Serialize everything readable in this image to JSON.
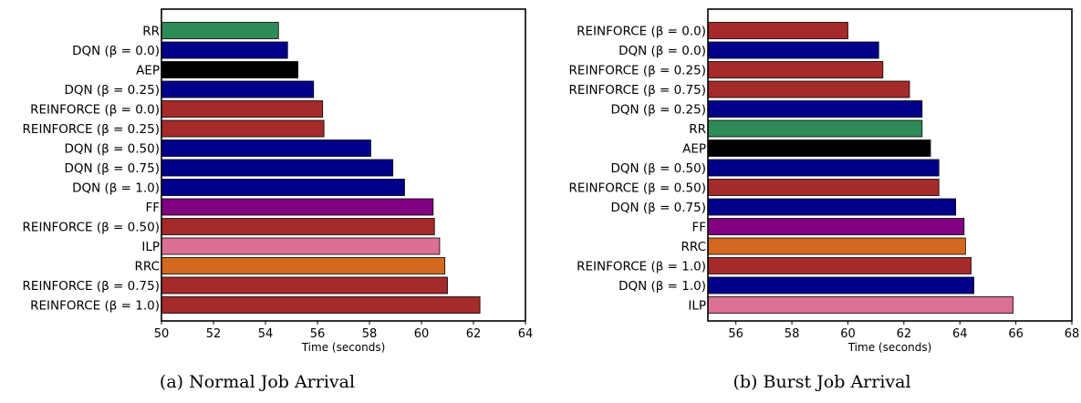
{
  "chart_data": [
    {
      "type": "bar",
      "orientation": "horizontal",
      "caption": "(a) Normal Job Arrival",
      "xlabel": "Time (seconds)",
      "xlim": [
        50,
        64
      ],
      "xticks": [
        50,
        52,
        54,
        56,
        58,
        60,
        62,
        64
      ],
      "categories": [
        {
          "label": "RR",
          "value": 54.5,
          "color": "#2e8b57"
        },
        {
          "label": "DQN (β = 0.0)",
          "value": 54.85,
          "color": "#00008b"
        },
        {
          "label": "AEP",
          "value": 55.25,
          "color": "#000000"
        },
        {
          "label": "DQN (β = 0.25)",
          "value": 55.85,
          "color": "#00008b"
        },
        {
          "label": "REINFORCE (β = 0.0)",
          "value": 56.2,
          "color": "#a52a2a"
        },
        {
          "label": "REINFORCE (β = 0.25)",
          "value": 56.25,
          "color": "#a52a2a"
        },
        {
          "label": "DQN (β = 0.50)",
          "value": 58.05,
          "color": "#00008b"
        },
        {
          "label": "DQN (β = 0.75)",
          "value": 58.9,
          "color": "#00008b"
        },
        {
          "label": "DQN (β = 1.0)",
          "value": 59.35,
          "color": "#00008b"
        },
        {
          "label": "FF",
          "value": 60.45,
          "color": "#800080"
        },
        {
          "label": "REINFORCE (β = 0.50)",
          "value": 60.5,
          "color": "#a52a2a"
        },
        {
          "label": "ILP",
          "value": 60.7,
          "color": "#db7093"
        },
        {
          "label": "RRC",
          "value": 60.9,
          "color": "#d2691e"
        },
        {
          "label": "REINFORCE (β = 0.75)",
          "value": 61.0,
          "color": "#a52a2a"
        },
        {
          "label": "REINFORCE (β = 1.0)",
          "value": 62.25,
          "color": "#a52a2a"
        }
      ]
    },
    {
      "type": "bar",
      "orientation": "horizontal",
      "caption": "(b) Burst Job Arrival",
      "xlabel": "Time (seconds)",
      "xlim": [
        55,
        68
      ],
      "xticks": [
        56,
        58,
        60,
        62,
        64,
        66,
        68
      ],
      "categories": [
        {
          "label": "REINFORCE (β = 0.0)",
          "value": 60.0,
          "color": "#a52a2a"
        },
        {
          "label": "DQN (β = 0.0)",
          "value": 61.1,
          "color": "#00008b"
        },
        {
          "label": "REINFORCE (β = 0.25)",
          "value": 61.25,
          "color": "#a52a2a"
        },
        {
          "label": "REINFORCE (β = 0.75)",
          "value": 62.2,
          "color": "#a52a2a"
        },
        {
          "label": "DQN (β = 0.25)",
          "value": 62.65,
          "color": "#00008b"
        },
        {
          "label": "RR",
          "value": 62.65,
          "color": "#2e8b57"
        },
        {
          "label": "AEP",
          "value": 62.95,
          "color": "#000000"
        },
        {
          "label": "DQN (β = 0.50)",
          "value": 63.25,
          "color": "#00008b"
        },
        {
          "label": "REINFORCE (β = 0.50)",
          "value": 63.25,
          "color": "#a52a2a"
        },
        {
          "label": "DQN (β = 0.75)",
          "value": 63.85,
          "color": "#00008b"
        },
        {
          "label": "FF",
          "value": 64.15,
          "color": "#800080"
        },
        {
          "label": "RRC",
          "value": 64.2,
          "color": "#d2691e"
        },
        {
          "label": "REINFORCE (β = 1.0)",
          "value": 64.4,
          "color": "#a52a2a"
        },
        {
          "label": "DQN (β = 1.0)",
          "value": 64.5,
          "color": "#00008b"
        },
        {
          "label": "ILP",
          "value": 65.9,
          "color": "#db7093"
        }
      ]
    }
  ]
}
